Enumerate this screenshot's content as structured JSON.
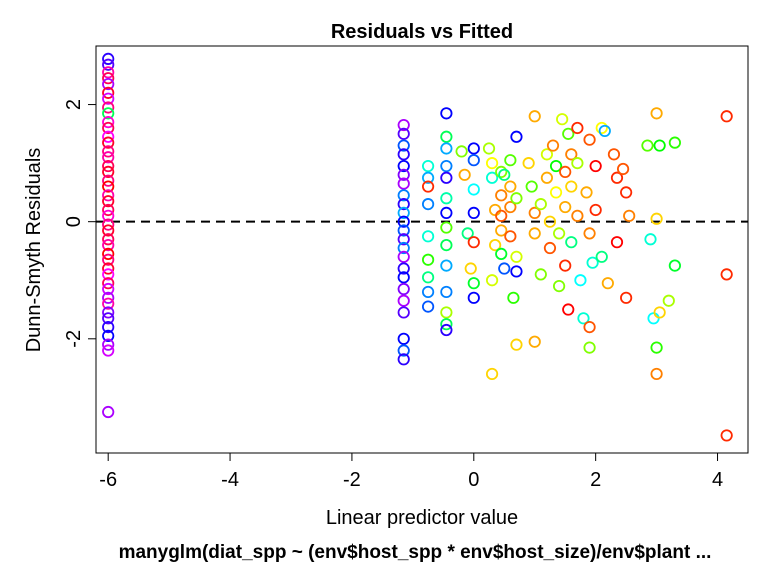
{
  "chart_data": {
    "type": "scatter",
    "title": "Residuals vs Fitted",
    "xlabel": "Linear predictor value",
    "ylabel": "Dunn-Smyth Residuals",
    "subtitle": "manyglm(diat_spp ~ (env$host_spp * env$host_size)/env$plant ...",
    "xlim": [
      -6.2,
      4.5
    ],
    "ylim": [
      -3.95,
      3.0
    ],
    "xticks": [
      -6,
      -4,
      -2,
      0,
      2,
      4
    ],
    "yticks": [
      -2,
      0,
      2
    ],
    "reference_line": {
      "y": 0,
      "style": "dashed"
    },
    "grid": false,
    "marker": "open-circle",
    "palette": [
      "#ff0000",
      "#ff2a00",
      "#ff5500",
      "#ff8000",
      "#ffaa00",
      "#ffd400",
      "#ffff00",
      "#d4ff00",
      "#aaff00",
      "#80ff00",
      "#55ff00",
      "#2aff00",
      "#00ff00",
      "#00ff2a",
      "#00ff55",
      "#00ff80",
      "#00ffaa",
      "#00ffd4",
      "#00ffff",
      "#00d4ff",
      "#00aaff",
      "#0080ff",
      "#0055ff",
      "#002aff",
      "#0000ff",
      "#2a00ff",
      "#5500ff",
      "#8000ff",
      "#aa00ff",
      "#d400ff",
      "#ff00ff",
      "#ff00d4",
      "#ff00aa",
      "#ff0080",
      "#ff0055",
      "#ff002a"
    ],
    "points": [
      {
        "x": -6.0,
        "y": 2.78,
        "c": "#2a00ff"
      },
      {
        "x": -6.0,
        "y": 2.68,
        "c": "#5500ff"
      },
      {
        "x": -6.0,
        "y": 2.55,
        "c": "#ff00aa"
      },
      {
        "x": -6.0,
        "y": 2.45,
        "c": "#ff0055"
      },
      {
        "x": -6.0,
        "y": 2.35,
        "c": "#aa00ff"
      },
      {
        "x": -6.0,
        "y": 2.2,
        "c": "#ff002a"
      },
      {
        "x": -6.0,
        "y": 2.1,
        "c": "#d400ff"
      },
      {
        "x": -6.0,
        "y": 1.95,
        "c": "#ff0080"
      },
      {
        "x": -6.0,
        "y": 1.85,
        "c": "#00ff55"
      },
      {
        "x": -6.0,
        "y": 1.7,
        "c": "#ff00d4"
      },
      {
        "x": -6.0,
        "y": 1.6,
        "c": "#ff0055"
      },
      {
        "x": -6.0,
        "y": 1.45,
        "c": "#ff00ff"
      },
      {
        "x": -6.0,
        "y": 1.35,
        "c": "#ff002a"
      },
      {
        "x": -6.0,
        "y": 1.2,
        "c": "#ff0080"
      },
      {
        "x": -6.0,
        "y": 1.1,
        "c": "#ff00aa"
      },
      {
        "x": -6.0,
        "y": 0.95,
        "c": "#ff0055"
      },
      {
        "x": -6.0,
        "y": 0.85,
        "c": "#ff002a"
      },
      {
        "x": -6.0,
        "y": 0.7,
        "c": "#ff0080"
      },
      {
        "x": -6.0,
        "y": 0.6,
        "c": "#ff0000"
      },
      {
        "x": -6.0,
        "y": 0.45,
        "c": "#ff00aa"
      },
      {
        "x": -6.0,
        "y": 0.35,
        "c": "#ff002a"
      },
      {
        "x": -6.0,
        "y": 0.2,
        "c": "#ff0055"
      },
      {
        "x": -6.0,
        "y": 0.1,
        "c": "#ff00d4"
      },
      {
        "x": -6.0,
        "y": -0.05,
        "c": "#ff0080"
      },
      {
        "x": -6.0,
        "y": -0.15,
        "c": "#ff002a"
      },
      {
        "x": -6.0,
        "y": -0.3,
        "c": "#ff0055"
      },
      {
        "x": -6.0,
        "y": -0.4,
        "c": "#ff00aa"
      },
      {
        "x": -6.0,
        "y": -0.55,
        "c": "#ff0000"
      },
      {
        "x": -6.0,
        "y": -0.65,
        "c": "#ff0080"
      },
      {
        "x": -6.0,
        "y": -0.8,
        "c": "#ff002a"
      },
      {
        "x": -6.0,
        "y": -0.9,
        "c": "#ff00ff"
      },
      {
        "x": -6.0,
        "y": -1.05,
        "c": "#ff0055"
      },
      {
        "x": -6.0,
        "y": -1.15,
        "c": "#d400ff"
      },
      {
        "x": -6.0,
        "y": -1.3,
        "c": "#aa00ff"
      },
      {
        "x": -6.0,
        "y": -1.4,
        "c": "#ff00aa"
      },
      {
        "x": -6.0,
        "y": -1.55,
        "c": "#8000ff"
      },
      {
        "x": -6.0,
        "y": -1.65,
        "c": "#5500ff"
      },
      {
        "x": -6.0,
        "y": -1.8,
        "c": "#2a00ff"
      },
      {
        "x": -6.0,
        "y": -1.95,
        "c": "#0000ff"
      },
      {
        "x": -6.0,
        "y": -2.1,
        "c": "#aa00ff"
      },
      {
        "x": -6.0,
        "y": -2.2,
        "c": "#d400ff"
      },
      {
        "x": -6.0,
        "y": -3.25,
        "c": "#aa00ff"
      },
      {
        "x": -1.15,
        "y": 1.65,
        "c": "#aa00ff"
      },
      {
        "x": -1.15,
        "y": 1.5,
        "c": "#5500ff"
      },
      {
        "x": -1.15,
        "y": 1.3,
        "c": "#0055ff"
      },
      {
        "x": -1.15,
        "y": 1.15,
        "c": "#2a00ff"
      },
      {
        "x": -1.15,
        "y": 0.95,
        "c": "#0000ff"
      },
      {
        "x": -1.15,
        "y": 0.8,
        "c": "#8000ff"
      },
      {
        "x": -1.15,
        "y": 0.65,
        "c": "#aa00ff"
      },
      {
        "x": -1.15,
        "y": 0.45,
        "c": "#0080ff"
      },
      {
        "x": -1.15,
        "y": 0.3,
        "c": "#2a00ff"
      },
      {
        "x": -1.15,
        "y": 0.15,
        "c": "#00aaff"
      },
      {
        "x": -1.15,
        "y": 0.0,
        "c": "#0000ff"
      },
      {
        "x": -1.15,
        "y": -0.15,
        "c": "#0055ff"
      },
      {
        "x": -1.15,
        "y": -0.3,
        "c": "#5500ff"
      },
      {
        "x": -1.15,
        "y": -0.45,
        "c": "#0080ff"
      },
      {
        "x": -1.15,
        "y": -0.6,
        "c": "#aa00ff"
      },
      {
        "x": -1.15,
        "y": -0.8,
        "c": "#2a00ff"
      },
      {
        "x": -1.15,
        "y": -0.95,
        "c": "#0000ff"
      },
      {
        "x": -1.15,
        "y": -1.15,
        "c": "#8000ff"
      },
      {
        "x": -1.15,
        "y": -1.35,
        "c": "#aa00ff"
      },
      {
        "x": -1.15,
        "y": -1.55,
        "c": "#5500ff"
      },
      {
        "x": -1.15,
        "y": -2.0,
        "c": "#0000ff"
      },
      {
        "x": -1.15,
        "y": -2.2,
        "c": "#0055ff"
      },
      {
        "x": -1.15,
        "y": -2.35,
        "c": "#2a00ff"
      },
      {
        "x": -0.75,
        "y": 0.95,
        "c": "#00ffd4"
      },
      {
        "x": -0.75,
        "y": 0.75,
        "c": "#00aaff"
      },
      {
        "x": -0.75,
        "y": 0.6,
        "c": "#ff2a00"
      },
      {
        "x": -0.75,
        "y": 0.3,
        "c": "#0080ff"
      },
      {
        "x": -0.75,
        "y": -0.25,
        "c": "#00ffd4"
      },
      {
        "x": -0.75,
        "y": -0.65,
        "c": "#2aff00"
      },
      {
        "x": -0.75,
        "y": -0.95,
        "c": "#00ff80"
      },
      {
        "x": -0.75,
        "y": -1.2,
        "c": "#0080ff"
      },
      {
        "x": -0.75,
        "y": -1.45,
        "c": "#0055ff"
      },
      {
        "x": -0.45,
        "y": 1.85,
        "c": "#0000ff"
      },
      {
        "x": -0.45,
        "y": 1.45,
        "c": "#00ff55"
      },
      {
        "x": -0.45,
        "y": 1.25,
        "c": "#00aaff"
      },
      {
        "x": -0.45,
        "y": 0.95,
        "c": "#0080ff"
      },
      {
        "x": -0.45,
        "y": 0.75,
        "c": "#2a00ff"
      },
      {
        "x": -0.45,
        "y": 0.4,
        "c": "#00ffaa"
      },
      {
        "x": -0.45,
        "y": 0.15,
        "c": "#0000ff"
      },
      {
        "x": -0.45,
        "y": -0.1,
        "c": "#55ff00"
      },
      {
        "x": -0.45,
        "y": -0.4,
        "c": "#00ff55"
      },
      {
        "x": -0.45,
        "y": -0.75,
        "c": "#00aaff"
      },
      {
        "x": -0.45,
        "y": -1.2,
        "c": "#0080ff"
      },
      {
        "x": -0.45,
        "y": -1.55,
        "c": "#aaff00"
      },
      {
        "x": -0.45,
        "y": -1.75,
        "c": "#00ff55"
      },
      {
        "x": -0.45,
        "y": -1.85,
        "c": "#2a00ff"
      },
      {
        "x": -0.2,
        "y": 1.2,
        "c": "#80ff00"
      },
      {
        "x": -0.15,
        "y": 0.8,
        "c": "#ffaa00"
      },
      {
        "x": -0.1,
        "y": -0.2,
        "c": "#00ff80"
      },
      {
        "x": -0.05,
        "y": -0.8,
        "c": "#ffd400"
      },
      {
        "x": 0.0,
        "y": 1.25,
        "c": "#0000ff"
      },
      {
        "x": 0.0,
        "y": 1.05,
        "c": "#0055ff"
      },
      {
        "x": 0.0,
        "y": 0.55,
        "c": "#00ffff"
      },
      {
        "x": 0.0,
        "y": 0.15,
        "c": "#0000ff"
      },
      {
        "x": 0.0,
        "y": -0.35,
        "c": "#ff2a00"
      },
      {
        "x": 0.0,
        "y": -1.05,
        "c": "#00ff2a"
      },
      {
        "x": 0.0,
        "y": -1.3,
        "c": "#0000ff"
      },
      {
        "x": 0.25,
        "y": 1.25,
        "c": "#aaff00"
      },
      {
        "x": 0.3,
        "y": 1.0,
        "c": "#ffff00"
      },
      {
        "x": 0.3,
        "y": 0.75,
        "c": "#00ffd4"
      },
      {
        "x": 0.35,
        "y": 0.2,
        "c": "#ffaa00"
      },
      {
        "x": 0.35,
        "y": -0.4,
        "c": "#ffd400"
      },
      {
        "x": 0.3,
        "y": -1.0,
        "c": "#d4ff00"
      },
      {
        "x": 0.3,
        "y": -2.6,
        "c": "#ffd400"
      },
      {
        "x": 0.45,
        "y": 0.85,
        "c": "#80ff00"
      },
      {
        "x": 0.45,
        "y": 0.45,
        "c": "#ff8000"
      },
      {
        "x": 0.45,
        "y": 0.1,
        "c": "#ff5500"
      },
      {
        "x": 0.45,
        "y": -0.15,
        "c": "#ffaa00"
      },
      {
        "x": 0.45,
        "y": -0.55,
        "c": "#00ff2a"
      },
      {
        "x": 0.5,
        "y": -0.8,
        "c": "#0055ff"
      },
      {
        "x": 0.5,
        "y": 0.8,
        "c": "#00ff80"
      },
      {
        "x": 0.6,
        "y": 1.05,
        "c": "#55ff00"
      },
      {
        "x": 0.6,
        "y": 0.6,
        "c": "#ffaa00"
      },
      {
        "x": 0.6,
        "y": 0.25,
        "c": "#ff8000"
      },
      {
        "x": 0.6,
        "y": -0.25,
        "c": "#ff5500"
      },
      {
        "x": 0.65,
        "y": -1.3,
        "c": "#2aff00"
      },
      {
        "x": 0.7,
        "y": 1.45,
        "c": "#0000ff"
      },
      {
        "x": 0.7,
        "y": 0.4,
        "c": "#80ff00"
      },
      {
        "x": 0.7,
        "y": -0.6,
        "c": "#d4ff00"
      },
      {
        "x": 0.7,
        "y": -0.85,
        "c": "#0000ff"
      },
      {
        "x": 0.7,
        "y": -2.1,
        "c": "#ffd400"
      },
      {
        "x": 0.9,
        "y": 1.0,
        "c": "#ffd400"
      },
      {
        "x": 0.95,
        "y": 0.6,
        "c": "#55ff00"
      },
      {
        "x": 1.0,
        "y": 1.8,
        "c": "#ffaa00"
      },
      {
        "x": 1.0,
        "y": 0.15,
        "c": "#ff8000"
      },
      {
        "x": 1.0,
        "y": -0.2,
        "c": "#ffaa00"
      },
      {
        "x": 1.0,
        "y": -2.05,
        "c": "#ffaa00"
      },
      {
        "x": 1.1,
        "y": 0.3,
        "c": "#aaff00"
      },
      {
        "x": 1.1,
        "y": -0.9,
        "c": "#80ff00"
      },
      {
        "x": 1.2,
        "y": 1.15,
        "c": "#d4ff00"
      },
      {
        "x": 1.2,
        "y": 0.75,
        "c": "#ffaa00"
      },
      {
        "x": 1.25,
        "y": 0.0,
        "c": "#ffd400"
      },
      {
        "x": 1.25,
        "y": -0.45,
        "c": "#ff5500"
      },
      {
        "x": 1.3,
        "y": 1.3,
        "c": "#ff8000"
      },
      {
        "x": 1.35,
        "y": 0.95,
        "c": "#00ff00"
      },
      {
        "x": 1.35,
        "y": 0.5,
        "c": "#ffff00"
      },
      {
        "x": 1.4,
        "y": -0.2,
        "c": "#aaff00"
      },
      {
        "x": 1.4,
        "y": -1.1,
        "c": "#80ff00"
      },
      {
        "x": 1.45,
        "y": 1.75,
        "c": "#d4ff00"
      },
      {
        "x": 1.5,
        "y": 0.85,
        "c": "#ff5500"
      },
      {
        "x": 1.5,
        "y": 0.25,
        "c": "#ffaa00"
      },
      {
        "x": 1.5,
        "y": -0.75,
        "c": "#ff2a00"
      },
      {
        "x": 1.55,
        "y": -1.5,
        "c": "#ff0000"
      },
      {
        "x": 1.55,
        "y": 1.5,
        "c": "#55ff00"
      },
      {
        "x": 1.6,
        "y": 1.15,
        "c": "#ff8000"
      },
      {
        "x": 1.6,
        "y": 0.6,
        "c": "#ffd400"
      },
      {
        "x": 1.6,
        "y": -0.35,
        "c": "#00ff80"
      },
      {
        "x": 1.7,
        "y": 1.6,
        "c": "#ff2a00"
      },
      {
        "x": 1.7,
        "y": 1.0,
        "c": "#aaff00"
      },
      {
        "x": 1.7,
        "y": 0.1,
        "c": "#ff8000"
      },
      {
        "x": 1.75,
        "y": -1.0,
        "c": "#00ffff"
      },
      {
        "x": 1.8,
        "y": -1.65,
        "c": "#00ffd4"
      },
      {
        "x": 1.85,
        "y": 0.5,
        "c": "#ffaa00"
      },
      {
        "x": 1.9,
        "y": 1.4,
        "c": "#ff5500"
      },
      {
        "x": 1.9,
        "y": -0.2,
        "c": "#ff8000"
      },
      {
        "x": 1.95,
        "y": -0.7,
        "c": "#00ffd4"
      },
      {
        "x": 1.9,
        "y": -1.8,
        "c": "#ff5500"
      },
      {
        "x": 1.9,
        "y": -2.15,
        "c": "#80ff00"
      },
      {
        "x": 2.0,
        "y": 0.95,
        "c": "#ff0000"
      },
      {
        "x": 2.0,
        "y": 0.2,
        "c": "#ff2a00"
      },
      {
        "x": 2.1,
        "y": 1.6,
        "c": "#ffff00"
      },
      {
        "x": 2.15,
        "y": 1.55,
        "c": "#00aaff"
      },
      {
        "x": 2.1,
        "y": -0.6,
        "c": "#00ff80"
      },
      {
        "x": 2.2,
        "y": -1.05,
        "c": "#ffaa00"
      },
      {
        "x": 2.3,
        "y": 1.15,
        "c": "#ff5500"
      },
      {
        "x": 2.35,
        "y": 0.75,
        "c": "#ff2a00"
      },
      {
        "x": 2.35,
        "y": -0.35,
        "c": "#ff0000"
      },
      {
        "x": 2.45,
        "y": 0.9,
        "c": "#ff5500"
      },
      {
        "x": 2.5,
        "y": 0.5,
        "c": "#ff2a00"
      },
      {
        "x": 2.55,
        "y": 0.1,
        "c": "#ff8000"
      },
      {
        "x": 2.5,
        "y": -1.3,
        "c": "#ff2a00"
      },
      {
        "x": 2.85,
        "y": 1.3,
        "c": "#55ff00"
      },
      {
        "x": 2.9,
        "y": -0.3,
        "c": "#00ffd4"
      },
      {
        "x": 2.95,
        "y": -1.65,
        "c": "#00ffff"
      },
      {
        "x": 3.0,
        "y": 1.85,
        "c": "#ffaa00"
      },
      {
        "x": 3.05,
        "y": 1.3,
        "c": "#00ff00"
      },
      {
        "x": 3.0,
        "y": 0.05,
        "c": "#ffd400"
      },
      {
        "x": 3.05,
        "y": -1.55,
        "c": "#ffd400"
      },
      {
        "x": 3.0,
        "y": -2.15,
        "c": "#2aff00"
      },
      {
        "x": 3.0,
        "y": -2.6,
        "c": "#ff8000"
      },
      {
        "x": 3.3,
        "y": 1.35,
        "c": "#2aff00"
      },
      {
        "x": 3.3,
        "y": -0.75,
        "c": "#00ff2a"
      },
      {
        "x": 3.2,
        "y": -1.35,
        "c": "#aaff00"
      },
      {
        "x": 4.15,
        "y": 1.8,
        "c": "#ff2a00"
      },
      {
        "x": 4.15,
        "y": -0.9,
        "c": "#ff2a00"
      },
      {
        "x": 4.15,
        "y": -3.65,
        "c": "#ff2a00"
      }
    ]
  }
}
